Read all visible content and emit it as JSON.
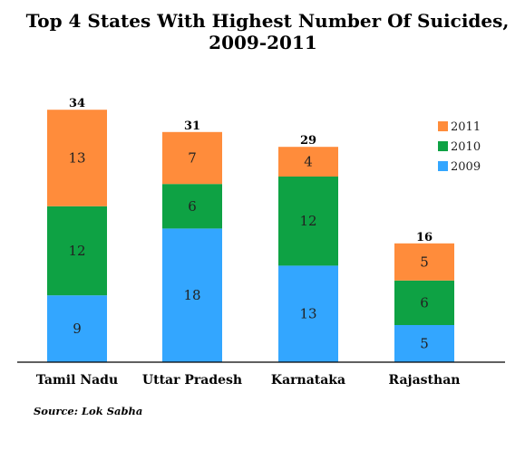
{
  "chart_data": {
    "type": "bar",
    "stacked": true,
    "title_lines": [
      "Top 4 States With Highest Number Of Suicides,",
      "2009-2011"
    ],
    "categories": [
      "Tamil Nadu",
      "Uttar Pradesh",
      "Karnataka",
      "Rajasthan"
    ],
    "series": [
      {
        "name": "2009",
        "values": [
          9,
          18,
          13,
          5
        ],
        "color": "#33a6ff"
      },
      {
        "name": "2010",
        "values": [
          12,
          6,
          12,
          6
        ],
        "color": "#0ea244"
      },
      {
        "name": "2011",
        "values": [
          13,
          7,
          4,
          5
        ],
        "color": "#ff8c3b"
      }
    ],
    "totals": [
      34,
      31,
      29,
      16
    ],
    "ylim": [
      0,
      34
    ],
    "grid": false,
    "legend_position": "right",
    "legend_order": [
      "2011",
      "2010",
      "2009"
    ]
  },
  "source": "Source: Lok Sabha"
}
